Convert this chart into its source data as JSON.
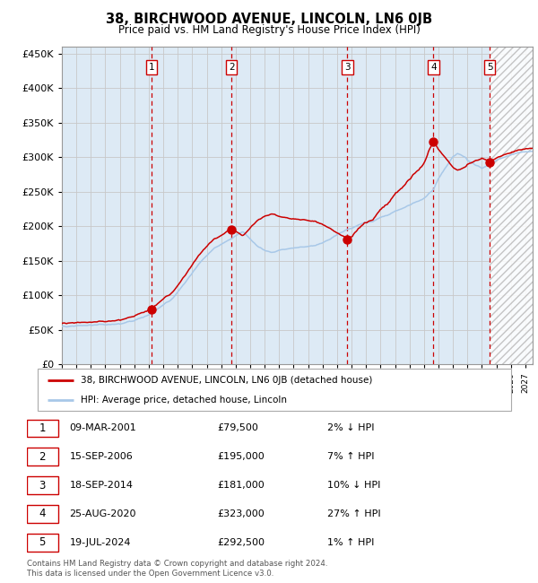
{
  "title": "38, BIRCHWOOD AVENUE, LINCOLN, LN6 0JB",
  "subtitle": "Price paid vs. HM Land Registry's House Price Index (HPI)",
  "ytick_values": [
    0,
    50000,
    100000,
    150000,
    200000,
    250000,
    300000,
    350000,
    400000,
    450000
  ],
  "ylim": [
    0,
    460000
  ],
  "xlim_start": 1995.0,
  "xlim_end": 2027.5,
  "sales": [
    {
      "num": 1,
      "date_num": 2001.19,
      "price": 79500,
      "label": "09-MAR-2001",
      "hpi_pct": "2% ↓ HPI"
    },
    {
      "num": 2,
      "date_num": 2006.71,
      "price": 195000,
      "label": "15-SEP-2006",
      "hpi_pct": "7% ↑ HPI"
    },
    {
      "num": 3,
      "date_num": 2014.71,
      "price": 181000,
      "label": "18-SEP-2014",
      "hpi_pct": "10% ↓ HPI"
    },
    {
      "num": 4,
      "date_num": 2020.65,
      "price": 323000,
      "label": "25-AUG-2020",
      "hpi_pct": "27% ↑ HPI"
    },
    {
      "num": 5,
      "date_num": 2024.54,
      "price": 292500,
      "label": "19-JUL-2024",
      "hpi_pct": "1% ↑ HPI"
    }
  ],
  "legend_line1": "38, BIRCHWOOD AVENUE, LINCOLN, LN6 0JB (detached house)",
  "legend_line2": "HPI: Average price, detached house, Lincoln",
  "footer1": "Contains HM Land Registry data © Crown copyright and database right 2024.",
  "footer2": "This data is licensed under the Open Government Licence v3.0.",
  "hpi_color": "#a8c8e8",
  "price_color": "#cc0000",
  "dot_color": "#cc0000",
  "grid_color": "#c8c8c8",
  "bg_color": "#ddeaf5",
  "hatch_color": "#bbbbbb"
}
